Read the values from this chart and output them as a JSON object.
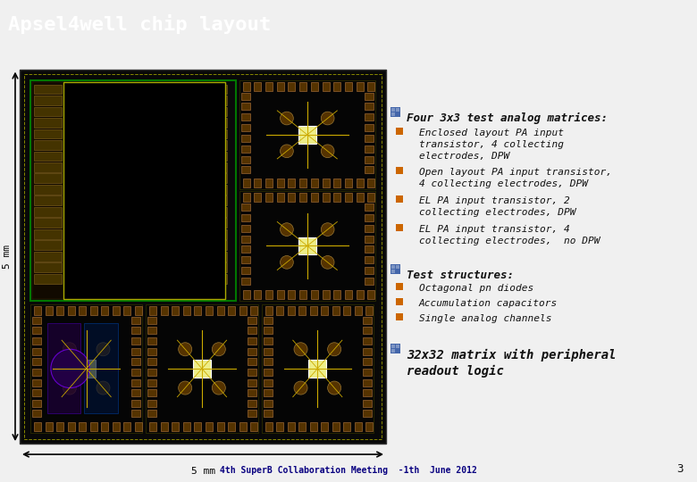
{
  "title": "Apsel4well chip layout",
  "title_bg": "#080080",
  "title_color": "#ffffff",
  "bg_color": "#f0f0f0",
  "footer_line2": "4th SuperB Collaboration Meeting  -1th  June 2012",
  "footer_page": "3",
  "footer_color": "#080080",
  "section1_title": "Four 3x3 test analog matrices:",
  "section1_bullets": [
    [
      "Enclosed layout PA input",
      "transistor, 4 collecting",
      "electrodes, DPW"
    ],
    [
      "Open layout PA input transistor,",
      "4 collecting electrodes, DPW"
    ],
    [
      "EL PA input transistor, 2",
      "collecting electrodes, DPW"
    ],
    [
      "EL PA input transistor, 4",
      "collecting electrodes,  no DPW"
    ]
  ],
  "section2_title": "Test structures:",
  "section2_bullets": [
    [
      "Octagonal pn diodes"
    ],
    [
      "Accumulation capacitors"
    ],
    [
      "Single analog channels"
    ]
  ],
  "section3_title": [
    "32x32 matrix with peripheral",
    "readout logic"
  ],
  "bullet_icon_color": "#cc6600",
  "section_icon_color": "#4466aa",
  "text_color": "#111111",
  "chip_bg": "#080808",
  "chip_border": "#ffffff"
}
